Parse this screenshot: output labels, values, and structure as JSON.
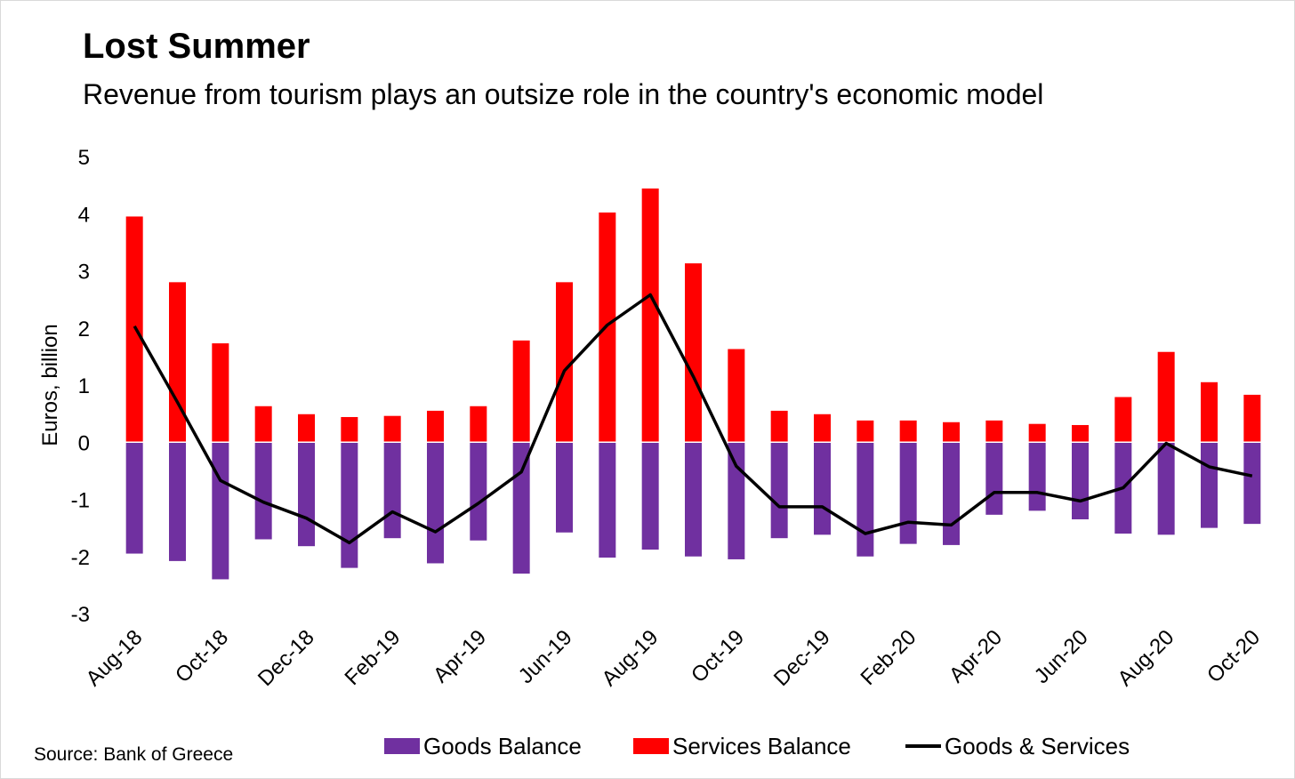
{
  "header": {
    "title": "Lost Summer",
    "subtitle": "Revenue from tourism plays an outsize role in the country's economic model"
  },
  "footer": {
    "source": "Source: Bank of Greece"
  },
  "colors": {
    "goods": "#7030a0",
    "services": "#ff0000",
    "line": "#000000"
  },
  "legend": {
    "goods": "Goods Balance",
    "services": "Services Balance",
    "total": "Goods & Services"
  },
  "chart_data": {
    "type": "bar",
    "ylabel": "Euros, billion",
    "ylim": [
      -3,
      5
    ],
    "yticks": [
      -3,
      -2,
      -1,
      0,
      1,
      2,
      3,
      4,
      5
    ],
    "categories": [
      "Aug-18",
      "Sep-18",
      "Oct-18",
      "Nov-18",
      "Dec-18",
      "Jan-19",
      "Feb-19",
      "Mar-19",
      "Apr-19",
      "May-19",
      "Jun-19",
      "Jul-19",
      "Aug-19",
      "Sep-19",
      "Oct-19",
      "Nov-19",
      "Dec-19",
      "Jan-20",
      "Feb-20",
      "Mar-20",
      "Apr-20",
      "May-20",
      "Jun-20",
      "Jul-20",
      "Aug-20",
      "Sep-20",
      "Oct-20"
    ],
    "tick_labels": [
      "Aug-18",
      "Oct-18",
      "Dec-18",
      "Feb-19",
      "Apr-19",
      "Jun-19",
      "Aug-19",
      "Oct-19",
      "Dec-19",
      "Feb-20",
      "Apr-20",
      "Jun-20",
      "Aug-20",
      "Oct-20"
    ],
    "series": [
      {
        "name": "Goods Balance",
        "type": "bar",
        "values": [
          -1.95,
          -2.08,
          -2.4,
          -1.7,
          -1.82,
          -2.2,
          -1.68,
          -2.12,
          -1.72,
          -2.3,
          -1.58,
          -2.02,
          -1.88,
          -2.0,
          -2.05,
          -1.68,
          -1.62,
          -2.0,
          -1.78,
          -1.8,
          -1.27,
          -1.2,
          -1.35,
          -1.6,
          -1.62,
          -1.5,
          -1.43
        ]
      },
      {
        "name": "Services Balance",
        "type": "bar",
        "values": [
          3.95,
          2.8,
          1.73,
          0.63,
          0.49,
          0.44,
          0.46,
          0.55,
          0.63,
          1.78,
          2.8,
          4.02,
          4.44,
          3.13,
          1.63,
          0.55,
          0.49,
          0.38,
          0.38,
          0.35,
          0.38,
          0.32,
          0.3,
          0.79,
          1.58,
          1.05,
          0.83
        ]
      },
      {
        "name": "Goods & Services",
        "type": "line",
        "values": [
          2.03,
          0.7,
          -0.67,
          -1.05,
          -1.33,
          -1.76,
          -1.22,
          -1.57,
          -1.07,
          -0.52,
          1.25,
          2.05,
          2.58,
          1.15,
          -0.42,
          -1.13,
          -1.13,
          -1.6,
          -1.4,
          -1.45,
          -0.88,
          -0.88,
          -1.03,
          -0.8,
          -0.02,
          -0.43,
          -0.59
        ]
      }
    ],
    "grid": false,
    "legend_position": "bottom"
  }
}
